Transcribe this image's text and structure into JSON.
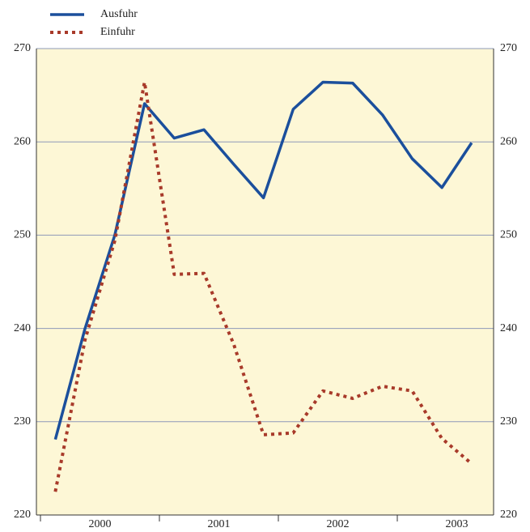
{
  "chart_data": {
    "type": "line",
    "x_groups": [
      "2000",
      "2001",
      "2002",
      "2003"
    ],
    "categories": [
      null,
      null,
      null,
      null,
      null,
      null,
      null,
      null,
      null,
      null,
      null,
      null,
      null,
      null,
      null
    ],
    "series": [
      {
        "name": "Ausfuhr",
        "color": "#1b4f9c",
        "style": "solid",
        "values": [
          228.1,
          240.0,
          250.0,
          264.1,
          260.4,
          261.3,
          257.6,
          254.0,
          263.5,
          266.4,
          266.3,
          262.9,
          258.2,
          255.1,
          259.9
        ]
      },
      {
        "name": "Einfuhr",
        "color": "#a83a2a",
        "style": "dotted",
        "values": [
          222.5,
          238.8,
          249.4,
          266.4,
          245.8,
          245.9,
          238.3,
          228.6,
          228.8,
          233.3,
          232.5,
          233.8,
          233.3,
          228.2,
          225.5
        ]
      }
    ],
    "ylim": [
      220,
      270
    ],
    "yticks": [
      220,
      230,
      240,
      250,
      260,
      270
    ],
    "grid": true
  }
}
